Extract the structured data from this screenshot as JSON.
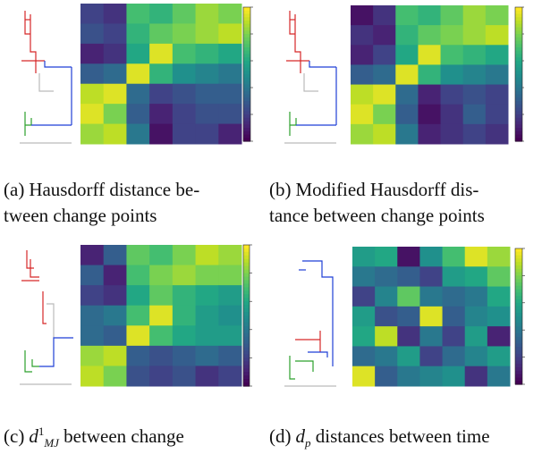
{
  "captions": {
    "a": {
      "label": "(a)",
      "line1": "Hausdorff distance be-",
      "line2": "tween change points"
    },
    "b": {
      "label": "(b)",
      "line1": "Modified Hausdorff dis-",
      "line2": "tance between change points"
    },
    "c": {
      "label": "(c)",
      "symbol": "d",
      "sup": "1",
      "sub": "MJ",
      "line1_rest": " between change"
    },
    "d": {
      "label": "(d)",
      "symbol": "d",
      "sub": "p",
      "line1_rest": " distances between time"
    }
  },
  "colors": {
    "dendro_red": "#d62728",
    "dendro_green": "#2ca02c",
    "dendro_blue": "#1f3fd6",
    "dendro_gray": "#bbbbbb",
    "colormap": "viridis"
  },
  "chart_data": [
    {
      "type": "heatmap",
      "panel": "a",
      "colorbar": "viridis",
      "values": [
        [
          0.2,
          0.15,
          0.7,
          0.65,
          0.75,
          0.85,
          0.8
        ],
        [
          0.25,
          0.2,
          0.65,
          0.75,
          0.8,
          0.85,
          0.9
        ],
        [
          0.1,
          0.15,
          0.6,
          0.95,
          0.7,
          0.65,
          0.6
        ],
        [
          0.3,
          0.35,
          0.95,
          0.65,
          0.5,
          0.45,
          0.4
        ],
        [
          0.9,
          0.95,
          0.35,
          0.2,
          0.25,
          0.3,
          0.3
        ],
        [
          0.95,
          0.8,
          0.3,
          0.1,
          0.2,
          0.25,
          0.25
        ],
        [
          0.85,
          0.9,
          0.4,
          0.05,
          0.2,
          0.2,
          0.1
        ]
      ]
    },
    {
      "type": "heatmap",
      "panel": "b",
      "colorbar": "viridis",
      "values": [
        [
          0.05,
          0.15,
          0.7,
          0.65,
          0.75,
          0.85,
          0.8
        ],
        [
          0.15,
          0.1,
          0.65,
          0.75,
          0.8,
          0.85,
          0.9
        ],
        [
          0.1,
          0.2,
          0.6,
          0.95,
          0.7,
          0.65,
          0.6
        ],
        [
          0.3,
          0.35,
          0.95,
          0.65,
          0.5,
          0.45,
          0.4
        ],
        [
          0.9,
          0.95,
          0.35,
          0.1,
          0.2,
          0.25,
          0.2
        ],
        [
          0.95,
          0.8,
          0.3,
          0.05,
          0.15,
          0.3,
          0.2
        ],
        [
          0.85,
          0.9,
          0.4,
          0.1,
          0.15,
          0.2,
          0.15
        ]
      ]
    },
    {
      "type": "heatmap",
      "panel": "c",
      "colorbar": "viridis",
      "values": [
        [
          0.1,
          0.3,
          0.75,
          0.7,
          0.8,
          0.9,
          0.85
        ],
        [
          0.3,
          0.1,
          0.7,
          0.8,
          0.85,
          0.8,
          0.8
        ],
        [
          0.2,
          0.15,
          0.6,
          0.75,
          0.65,
          0.6,
          0.55
        ],
        [
          0.35,
          0.4,
          0.7,
          0.95,
          0.65,
          0.55,
          0.5
        ],
        [
          0.35,
          0.3,
          0.95,
          0.7,
          0.6,
          0.55,
          0.55
        ],
        [
          0.85,
          0.9,
          0.3,
          0.25,
          0.3,
          0.35,
          0.3
        ],
        [
          0.9,
          0.8,
          0.25,
          0.2,
          0.25,
          0.15,
          0.2
        ]
      ]
    },
    {
      "type": "heatmap",
      "panel": "d",
      "colorbar": "viridis",
      "values": [
        [
          0.55,
          0.6,
          0.05,
          0.5,
          0.7,
          0.95,
          0.85
        ],
        [
          0.4,
          0.35,
          0.3,
          0.2,
          0.55,
          0.6,
          0.75
        ],
        [
          0.2,
          0.45,
          0.75,
          0.4,
          0.35,
          0.4,
          0.6
        ],
        [
          0.55,
          0.25,
          0.3,
          0.95,
          0.3,
          0.45,
          0.5
        ],
        [
          0.6,
          0.9,
          0.15,
          0.4,
          0.2,
          0.55,
          0.1
        ],
        [
          0.35,
          0.4,
          0.55,
          0.2,
          0.35,
          0.45,
          0.55
        ],
        [
          0.95,
          0.3,
          0.4,
          0.45,
          0.5,
          0.15,
          0.4
        ]
      ]
    }
  ]
}
